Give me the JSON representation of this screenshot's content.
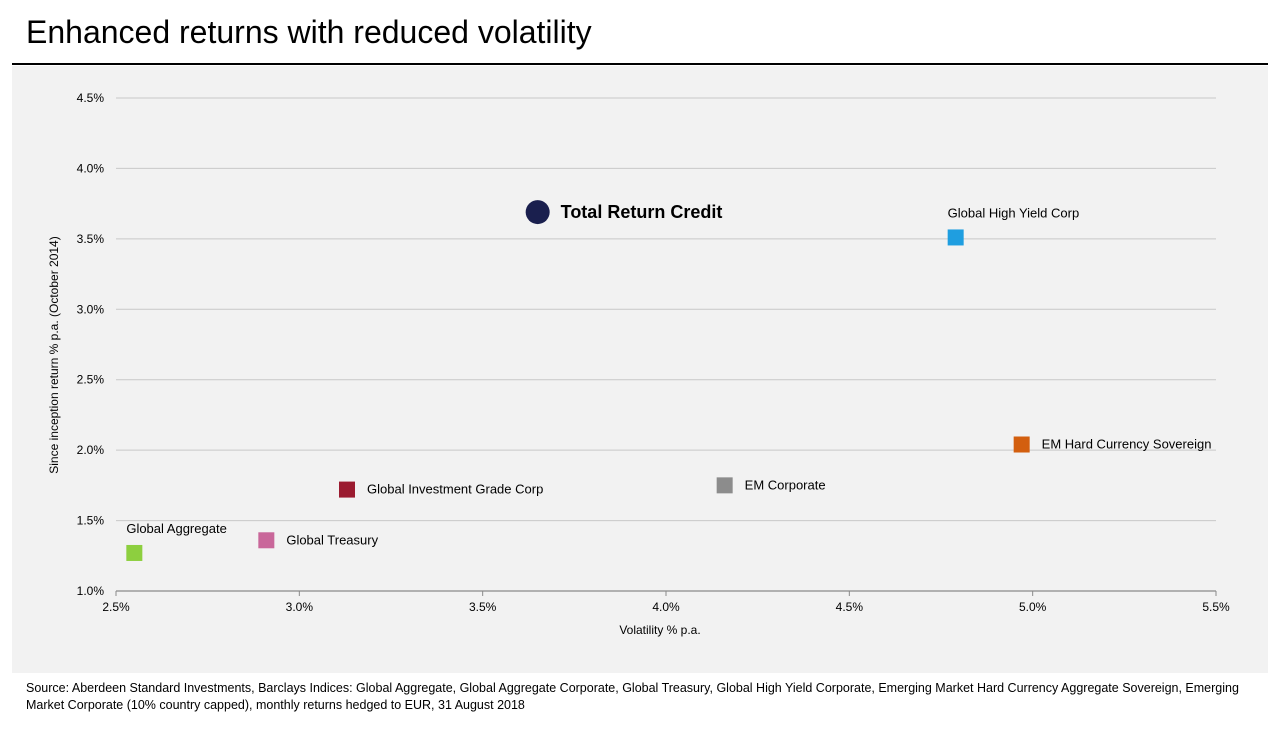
{
  "page": {
    "title": "Enhanced returns with reduced volatility",
    "source": "Source: Aberdeen Standard Investments, Barclays Indices: Global  Aggregate, Global Aggregate Corporate, Global Treasury, Global High Yield Corporate, Emerging Market Hard Currency Aggregate Sovereign, Emerging Market Corporate (10% country capped), monthly returns hedged to EUR, 31 August 2018"
  },
  "chart_data": {
    "type": "scatter",
    "title": "Enhanced returns with reduced volatility",
    "xlabel": "Volatility % p.a.",
    "ylabel": "Since inception return % p.a. (October 2014)",
    "xlim": [
      2.5,
      5.5
    ],
    "ylim": [
      1.0,
      4.5
    ],
    "x_ticks": [
      2.5,
      3.0,
      3.5,
      4.0,
      4.5,
      5.0,
      5.5
    ],
    "x_tick_labels": [
      "2.5%",
      "3.0%",
      "3.5%",
      "4.0%",
      "4.5%",
      "5.0%",
      "5.5%"
    ],
    "y_ticks": [
      1.0,
      1.5,
      2.0,
      2.5,
      3.0,
      3.5,
      4.0,
      4.5
    ],
    "y_tick_labels": [
      "1.0%",
      "1.5%",
      "2.0%",
      "2.5%",
      "3.0%",
      "3.5%",
      "4.0%",
      "4.5%"
    ],
    "grid": "horizontal",
    "points": [
      {
        "name": "Total Return Credit",
        "x": 3.65,
        "y": 3.69,
        "color": "#1a1f4e",
        "marker": "circle",
        "label_pos": "right",
        "emphasis": true
      },
      {
        "name": "Global High Yield Corp",
        "x": 4.79,
        "y": 3.51,
        "color": "#1f9ee0",
        "marker": "square",
        "label_pos": "above-right"
      },
      {
        "name": "EM Hard Currency Sovereign",
        "x": 4.97,
        "y": 2.04,
        "color": "#d35f0f",
        "marker": "square",
        "label_pos": "right"
      },
      {
        "name": "EM Corporate",
        "x": 4.16,
        "y": 1.75,
        "color": "#8c8c8c",
        "marker": "square",
        "label_pos": "right"
      },
      {
        "name": "Global Investment Grade Corp",
        "x": 3.13,
        "y": 1.72,
        "color": "#9b1b30",
        "marker": "square",
        "label_pos": "right"
      },
      {
        "name": "Global Treasury",
        "x": 2.91,
        "y": 1.36,
        "color": "#c9679a",
        "marker": "square",
        "label_pos": "right"
      },
      {
        "name": "Global Aggregate",
        "x": 2.55,
        "y": 1.27,
        "color": "#8dcf3f",
        "marker": "square",
        "label_pos": "above-right"
      }
    ]
  }
}
